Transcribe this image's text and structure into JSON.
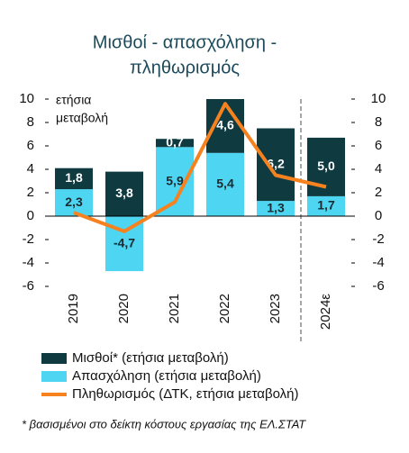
{
  "chart_data": {
    "type": "bar",
    "stacked": true,
    "title": [
      "Μισθοί - απασχόληση -",
      "πληθωρισμός"
    ],
    "y_label": [
      "ετήσια",
      "μεταβολή"
    ],
    "categories": [
      "2019",
      "2020",
      "2021",
      "2022",
      "2023",
      "2024ε"
    ],
    "series": [
      {
        "name": "Απασχόληση (ετήσια μεταβολή)",
        "color": "#4dd5f1",
        "type": "bar",
        "values": [
          2.3,
          -4.7,
          5.9,
          5.4,
          1.3,
          1.7
        ],
        "value_labels": [
          "2,3",
          "-4,7",
          "5,9",
          "5,4",
          "1,3",
          "1,7"
        ],
        "label_color": "#1a2a30"
      },
      {
        "name": "Μισθοί* (ετήσια μεταβολή)",
        "color": "#0e3a40",
        "type": "bar",
        "values": [
          1.8,
          3.8,
          0.7,
          4.6,
          6.2,
          5.0
        ],
        "value_labels": [
          "1,8",
          "3,8",
          "0,7",
          "4,6",
          "6,2",
          "5,0"
        ],
        "label_color": "#ffffff"
      },
      {
        "name": "Πληθωρισμός (ΔΤΚ, ετήσια μεταβολή)",
        "color": "#f5821f",
        "type": "line",
        "axis": "y2",
        "values": [
          0.3,
          -1.3,
          1.2,
          9.6,
          3.5,
          2.5
        ]
      }
    ],
    "ylim": [
      -6,
      10
    ],
    "yticks": [
      -6,
      -4,
      -2,
      0,
      2,
      4,
      6,
      8,
      10
    ],
    "y2lim": [
      -6,
      10
    ],
    "y2ticks": [
      -6,
      -4,
      -2,
      0,
      2,
      4,
      6,
      8,
      10
    ],
    "legend_order": [
      1,
      0,
      2
    ],
    "footnote": "* βασισμένοι στο δείκτη κόστους εργασίας της ΕΛ.ΣΤΑΤ"
  }
}
